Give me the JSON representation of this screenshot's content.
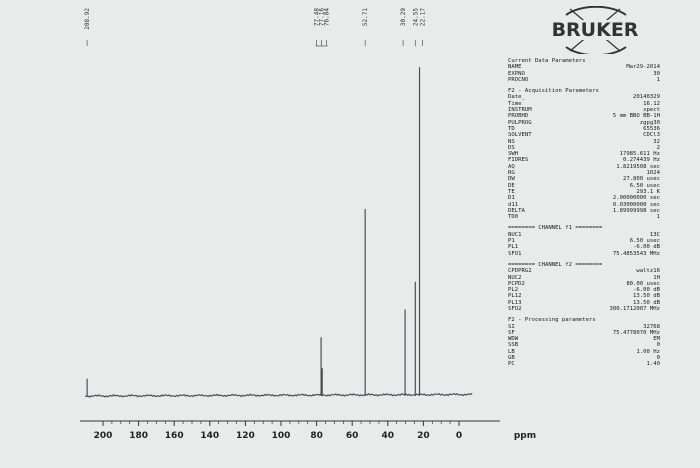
{
  "chart_data": {
    "type": "line",
    "title": "",
    "xlabel": "ppm",
    "ylabel": "",
    "xlim": [
      210,
      -8
    ],
    "x_ticks": [
      200,
      180,
      160,
      140,
      120,
      100,
      80,
      60,
      40,
      20,
      0
    ],
    "tick_labels": [
      "200",
      "180",
      "160",
      "140",
      "120",
      "100",
      "80",
      "60",
      "40",
      "20",
      "0"
    ],
    "grid": false,
    "peaks": [
      {
        "ppm": 208.92,
        "height": 0.05
      },
      {
        "ppm": 77.48,
        "height": 0.17
      },
      {
        "ppm": 77.16,
        "height": 0.08
      },
      {
        "ppm": 76.84,
        "height": 0.08
      },
      {
        "ppm": 52.71,
        "height": 0.54
      },
      {
        "ppm": 30.29,
        "height": 0.25
      },
      {
        "ppm": 24.55,
        "height": 0.33
      },
      {
        "ppm": 22.17,
        "height": 0.95
      }
    ],
    "peak_labels": [
      {
        "ppm": 208.92,
        "text": "208.92"
      },
      {
        "ppm": 77.48,
        "text": "77.48"
      },
      {
        "ppm": 77.16,
        "text": "77.16"
      },
      {
        "ppm": 76.84,
        "text": "76.84"
      },
      {
        "ppm": 52.71,
        "text": "52.71"
      },
      {
        "ppm": 30.29,
        "text": "30.29"
      },
      {
        "ppm": 24.55,
        "text": "24.55"
      },
      {
        "ppm": 22.17,
        "text": "22.17"
      }
    ]
  },
  "brand": "BRUKER",
  "colors": {
    "trace": "#4a4f55",
    "background": "#e9ebea",
    "text": "#1a1a1a"
  },
  "current": {
    "title": "Current Data Parameters",
    "rows": [
      {
        "k": "NAME",
        "v": "Mar29-2014"
      },
      {
        "k": "EXPNO",
        "v": "30"
      },
      {
        "k": "PROCNO",
        "v": "1"
      }
    ]
  },
  "acq": {
    "title": "F2 - Acquisition Parameters",
    "rows": [
      {
        "k": "Date_",
        "v": "20140329"
      },
      {
        "k": "Time",
        "v": "16.12"
      },
      {
        "k": "INSTRUM",
        "v": "spect"
      },
      {
        "k": "PROBHD",
        "v": "5 mm BBO BB-1H"
      },
      {
        "k": "PULPROG",
        "v": "zgpg30"
      },
      {
        "k": "TD",
        "v": "65536"
      },
      {
        "k": "SOLVENT",
        "v": "CDCl3"
      },
      {
        "k": "NS",
        "v": "32"
      },
      {
        "k": "DS",
        "v": "2"
      },
      {
        "k": "SWH",
        "v": "17985.611 Hz"
      },
      {
        "k": "FIDRES",
        "v": "0.274439 Hz"
      },
      {
        "k": "AQ",
        "v": "1.8219508 sec"
      },
      {
        "k": "RG",
        "v": "1024"
      },
      {
        "k": "DW",
        "v": "27.800 usec"
      },
      {
        "k": "DE",
        "v": "6.50 usec"
      },
      {
        "k": "TE",
        "v": "293.1 K"
      },
      {
        "k": "D1",
        "v": "2.00000000 sec"
      },
      {
        "k": "d11",
        "v": "0.03000000 sec"
      },
      {
        "k": "DELTA",
        "v": "1.89999998 sec"
      },
      {
        "k": "TD0",
        "v": "1"
      }
    ]
  },
  "ch1": {
    "title": "======== CHANNEL f1 ========",
    "rows": [
      {
        "k": "NUC1",
        "v": "13C"
      },
      {
        "k": "P1",
        "v": "6.50 usec"
      },
      {
        "k": "PL1",
        "v": "-6.00 dB"
      },
      {
        "k": "SFO1",
        "v": "75.4853543 MHz"
      }
    ]
  },
  "ch2": {
    "title": "======== CHANNEL f2 ========",
    "rows": [
      {
        "k": "CPDPRG2",
        "v": "waltz16"
      },
      {
        "k": "NUC2",
        "v": "1H"
      },
      {
        "k": "PCPD2",
        "v": "80.00 usec"
      },
      {
        "k": "PL2",
        "v": "-6.00 dB"
      },
      {
        "k": "PL12",
        "v": "13.50 dB"
      },
      {
        "k": "PL13",
        "v": "13.50 dB"
      },
      {
        "k": "SFO2",
        "v": "300.1712007 MHz"
      }
    ]
  },
  "proc": {
    "title": "F2 - Processing parameters",
    "rows": [
      {
        "k": "SI",
        "v": "32768"
      },
      {
        "k": "SF",
        "v": "75.4778070 MHz"
      },
      {
        "k": "WDW",
        "v": "EM"
      },
      {
        "k": "SSB",
        "v": "0"
      },
      {
        "k": "LB",
        "v": "1.00 Hz"
      },
      {
        "k": "GB",
        "v": "0"
      },
      {
        "k": "PC",
        "v": "1.40"
      }
    ]
  }
}
